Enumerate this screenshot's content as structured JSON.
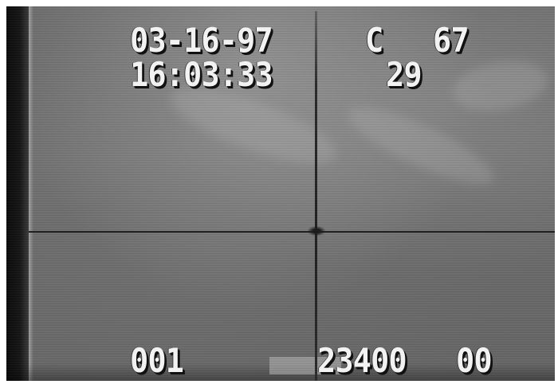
{
  "overlay": {
    "date": "03-16-97",
    "channel_label": "C",
    "channel_value": "67",
    "time": "16:03:33",
    "field_value": "29",
    "counter": "001",
    "frame_code": "23400",
    "frame_suffix": "00"
  },
  "colors": {
    "frame_gray": "#707070",
    "text": "#f2f2f2",
    "crosshair": "#1e1e1e"
  }
}
